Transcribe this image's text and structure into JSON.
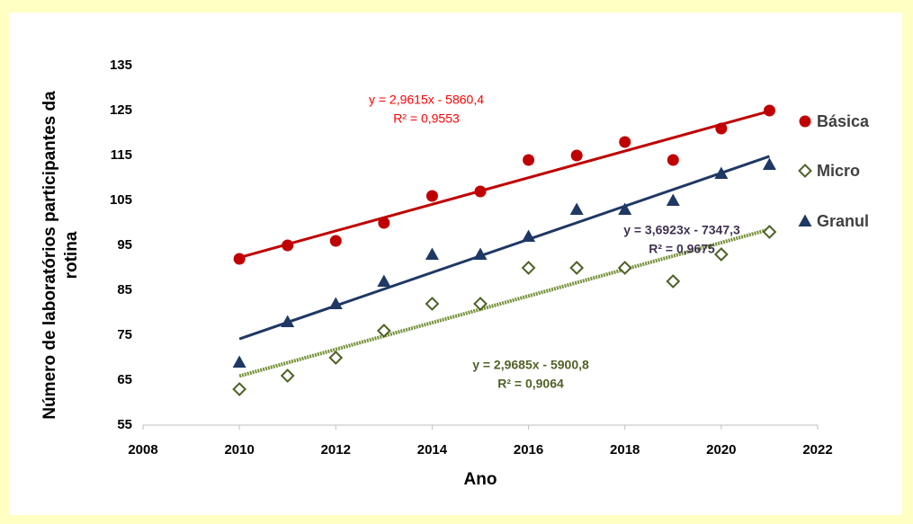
{
  "chart_data": {
    "type": "scatter",
    "x_label": "Ano",
    "y_label": "Número de laboratórios participantes da rotina",
    "xlim": [
      2008,
      2022
    ],
    "xticks": [
      2008,
      2010,
      2012,
      2014,
      2016,
      2018,
      2020,
      2022
    ],
    "ylim": [
      55,
      135
    ],
    "yticks": [
      55,
      65,
      75,
      85,
      95,
      105,
      115,
      125,
      135
    ],
    "x": [
      2010,
      2011,
      2012,
      2013,
      2014,
      2015,
      2016,
      2017,
      2018,
      2019,
      2020,
      2021
    ],
    "series": [
      {
        "name": "Básica",
        "color": "#c00000",
        "marker": "circle",
        "trend_color": "#c00000",
        "trend_style": "solid",
        "values": [
          92,
          95,
          96,
          100,
          106,
          107,
          114,
          115,
          118,
          114,
          121,
          125
        ],
        "equation": "y = 2,9615x - 5860,4",
        "r2": "R² = 0,9553",
        "label_color": "#ff0000"
      },
      {
        "name": "Micro",
        "color": "#4f6228",
        "marker": "diamond",
        "trend_color": "#77933c",
        "trend_style": "dotted",
        "values": [
          63,
          66,
          70,
          76,
          82,
          82,
          90,
          90,
          90,
          87,
          93,
          98
        ],
        "equation": "y = 2,9685x - 5900,8",
        "r2": "R² = 0,9064",
        "label_color": "#4f6228"
      },
      {
        "name": "Granul",
        "color": "#1f3864",
        "marker": "triangle",
        "trend_color": "#1f3864",
        "trend_style": "solid",
        "values": [
          69,
          78,
          82,
          87,
          93,
          93,
          97,
          103,
          103,
          105,
          111,
          113
        ],
        "equation": "y = 3,6923x - 7347,3",
        "r2": "R² = 0,9675",
        "label_color": "#403152"
      }
    ]
  }
}
